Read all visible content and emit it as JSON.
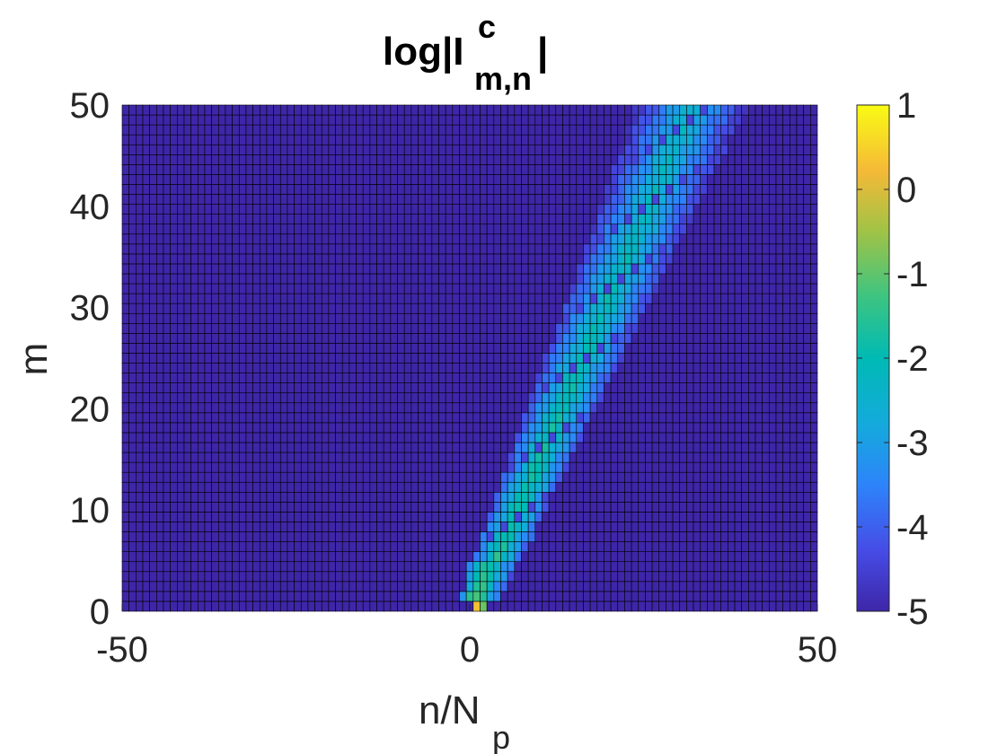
{
  "chart_data": {
    "type": "heatmap",
    "title": {
      "prefix": "log|I",
      "superscript": "c",
      "subscript": "m,n",
      "suffix": "|"
    },
    "xlabel": {
      "base": "n/N",
      "subscript": "p"
    },
    "ylabel": "m",
    "xlim": [
      -50,
      50
    ],
    "ylim": [
      0,
      50
    ],
    "x_ticks": [
      -50,
      0,
      50
    ],
    "y_ticks": [
      0,
      10,
      20,
      30,
      40,
      50
    ],
    "colorbar": {
      "range": [
        -5,
        1
      ],
      "ticks": [
        1,
        0,
        -1,
        -2,
        -3,
        -4,
        -5
      ],
      "colormap": "parula",
      "location": "right"
    },
    "grid_lines": true,
    "background_value": -5,
    "n_cols": 101,
    "n_rows": 51,
    "x_start": -50,
    "y_start": 0,
    "cells": [
      [
        1,
        0,
        0.3
      ],
      [
        2,
        0,
        -0.9
      ],
      [
        -1,
        1,
        -3.2
      ],
      [
        0,
        1,
        -1.5
      ],
      [
        1,
        1,
        -1.2
      ],
      [
        2,
        1,
        -1.6
      ],
      [
        3,
        1,
        -3.0
      ],
      [
        0,
        2,
        -2.8
      ],
      [
        1,
        2,
        -1.6
      ],
      [
        2,
        2,
        -1.4
      ],
      [
        3,
        2,
        -2.3
      ],
      [
        4,
        2,
        -3.4
      ],
      [
        0,
        3,
        -3.0
      ],
      [
        1,
        3,
        -2.0
      ],
      [
        2,
        3,
        -1.5
      ],
      [
        3,
        3,
        -1.9
      ],
      [
        4,
        3,
        -2.8
      ],
      [
        0,
        4,
        -3.4
      ],
      [
        1,
        4,
        -2.4
      ],
      [
        2,
        4,
        -1.7
      ],
      [
        3,
        4,
        -1.9
      ],
      [
        4,
        4,
        -2.4
      ],
      [
        5,
        4,
        -3.3
      ]
    ],
    "band": {
      "centers": [
        [
          1,
          0
        ],
        [
          32,
          50
        ]
      ],
      "half_widths": [
        [
          0,
          3
        ],
        [
          50,
          8
        ]
      ],
      "peak_value": -1.5,
      "edge_value": -3.9
    }
  }
}
